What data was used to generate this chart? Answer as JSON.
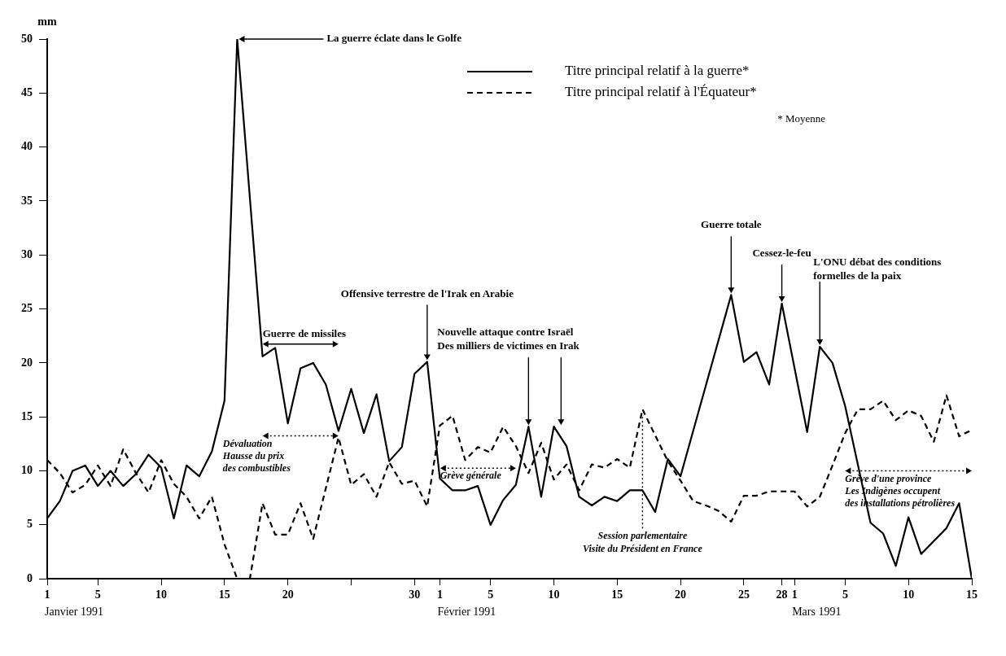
{
  "chart_data": {
    "type": "line",
    "ylabel": "mm",
    "xlim": [
      "1991-01-01",
      "1991-03-15"
    ],
    "ylim": [
      0,
      50
    ],
    "yticks": [
      0,
      5,
      10,
      15,
      20,
      25,
      30,
      35,
      40,
      45,
      50
    ],
    "xticks": [
      {
        "value": "1991-01-01",
        "label": "1"
      },
      {
        "value": "1991-01-05",
        "label": "5"
      },
      {
        "value": "1991-01-10",
        "label": "10"
      },
      {
        "value": "1991-01-15",
        "label": "15"
      },
      {
        "value": "1991-01-20",
        "label": "20"
      },
      {
        "value": "1991-01-25",
        "label": null
      },
      {
        "value": "1991-01-30",
        "label": "30"
      },
      {
        "value": "1991-02-01",
        "label": "1"
      },
      {
        "value": "1991-02-05",
        "label": "5"
      },
      {
        "value": "1991-02-10",
        "label": "10"
      },
      {
        "value": "1991-02-15",
        "label": "15"
      },
      {
        "value": "1991-02-20",
        "label": "20"
      },
      {
        "value": "1991-02-25",
        "label": "25"
      },
      {
        "value": "1991-02-28",
        "label": "28"
      },
      {
        "value": "1991-03-01",
        "label": "1"
      },
      {
        "value": "1991-03-05",
        "label": "5"
      },
      {
        "value": "1991-03-10",
        "label": "10"
      },
      {
        "value": "1991-03-15",
        "label": "15"
      }
    ],
    "grid": false,
    "legend": "top right",
    "marker": "none",
    "series": [
      {
        "name": "Titre principal relatif à la guerre*",
        "color": "#000000",
        "line_style": "solid",
        "x": [
          "1991-01-01",
          "1991-01-02",
          "1991-01-03",
          "1991-01-04",
          "1991-01-05",
          "1991-01-06",
          "1991-01-07",
          "1991-01-08",
          "1991-01-09",
          "1991-01-10",
          "1991-01-11",
          "1991-01-12",
          "1991-01-13",
          "1991-01-14",
          "1991-01-15",
          "1991-01-16",
          "1991-01-18",
          "1991-01-19",
          "1991-01-20",
          "1991-01-21",
          "1991-01-22",
          "1991-01-23",
          "1991-01-24",
          "1991-01-25",
          "1991-01-26",
          "1991-01-27",
          "1991-01-28",
          "1991-01-29",
          "1991-01-30",
          "1991-01-31",
          "1991-02-01",
          "1991-02-02",
          "1991-02-03",
          "1991-02-04",
          "1991-02-05",
          "1991-02-06",
          "1991-02-07",
          "1991-02-08",
          "1991-02-09",
          "1991-02-10",
          "1991-02-11",
          "1991-02-12",
          "1991-02-13",
          "1991-02-14",
          "1991-02-15",
          "1991-02-16",
          "1991-02-17",
          "1991-02-18",
          "1991-02-19",
          "1991-02-20",
          "1991-02-24",
          "1991-02-25",
          "1991-02-26",
          "1991-02-27",
          "1991-02-28",
          "1991-03-02",
          "1991-03-03",
          "1991-03-04",
          "1991-03-05",
          "1991-03-07",
          "1991-03-08",
          "1991-03-09",
          "1991-03-10",
          "1991-03-11",
          "1991-03-13",
          "1991-03-14",
          "1991-03-15"
        ],
        "values": [
          5.6,
          7.2,
          10,
          10.5,
          8.6,
          10,
          8.6,
          9.7,
          11.5,
          10.3,
          5.6,
          10.5,
          9.5,
          11.8,
          16.5,
          50,
          20.6,
          21.4,
          14.4,
          19.5,
          20,
          18,
          13.7,
          17.6,
          13.5,
          17.1,
          10.9,
          12.2,
          19,
          20.1,
          9.3,
          8.2,
          8.2,
          8.6,
          5,
          7.3,
          8.7,
          14.1,
          7.6,
          14.1,
          12.3,
          7.6,
          6.8,
          7.6,
          7.2,
          8.2,
          8.2,
          6.2,
          11.1,
          9.5,
          26.3,
          20.1,
          21,
          18,
          25.5,
          13.6,
          21.5,
          20,
          16,
          5.2,
          4.2,
          1.2,
          5.7,
          2.3,
          4.7,
          7,
          0
        ]
      },
      {
        "name": "Titre principal relatif à l'Équateur*",
        "color": "#000000",
        "line_style": "dashed",
        "x": [
          "1991-01-01",
          "1991-01-02",
          "1991-01-03",
          "1991-01-04",
          "1991-01-05",
          "1991-01-06",
          "1991-01-07",
          "1991-01-08",
          "1991-01-09",
          "1991-01-10",
          "1991-01-11",
          "1991-01-12",
          "1991-01-13",
          "1991-01-14",
          "1991-01-15",
          "1991-01-16",
          "1991-01-17",
          "1991-01-18",
          "1991-01-19",
          "1991-01-20",
          "1991-01-21",
          "1991-01-22",
          "1991-01-24",
          "1991-01-25",
          "1991-01-26",
          "1991-01-27",
          "1991-01-28",
          "1991-01-29",
          "1991-01-30",
          "1991-01-31",
          "1991-02-01",
          "1991-02-02",
          "1991-02-03",
          "1991-02-04",
          "1991-02-05",
          "1991-02-06",
          "1991-02-07",
          "1991-02-08",
          "1991-02-09",
          "1991-02-10",
          "1991-02-11",
          "1991-02-12",
          "1991-02-13",
          "1991-02-14",
          "1991-02-15",
          "1991-02-16",
          "1991-02-17",
          "1991-02-18",
          "1991-02-19",
          "1991-02-20",
          "1991-02-21",
          "1991-02-22",
          "1991-02-23",
          "1991-02-24",
          "1991-02-25",
          "1991-02-26",
          "1991-02-27",
          "1991-02-28",
          "1991-03-01",
          "1991-03-02",
          "1991-03-03",
          "1991-03-04",
          "1991-03-05",
          "1991-03-06",
          "1991-03-07",
          "1991-03-08",
          "1991-03-09",
          "1991-03-10",
          "1991-03-11",
          "1991-03-12",
          "1991-03-13",
          "1991-03-14",
          "1991-03-15"
        ],
        "values": [
          11,
          9.8,
          8,
          8.7,
          10.5,
          8.6,
          12,
          9.8,
          8,
          11,
          8.8,
          7.6,
          5.6,
          7.6,
          3.2,
          0,
          0,
          7,
          4.1,
          4.1,
          7,
          3.7,
          13.1,
          8.7,
          9.7,
          7.6,
          10.8,
          8.8,
          9.1,
          6.7,
          14.2,
          15.1,
          11,
          12.2,
          11.7,
          14.1,
          12.3,
          9.8,
          12.6,
          9.2,
          10.6,
          8.2,
          10.6,
          10.3,
          11.1,
          10.3,
          15.7,
          13.3,
          10.9,
          9.1,
          7.2,
          6.8,
          6.3,
          5.3,
          7.7,
          7.7,
          8.1,
          8.1,
          8.1,
          6.7,
          7.6,
          10.5,
          13.5,
          15.7,
          15.7,
          16.5,
          14.7,
          15.6,
          15.1,
          12.7,
          17,
          13.2,
          13.8
        ]
      }
    ],
    "annotations": [
      {
        "text": "La guerre éclate dans le Golfe",
        "x": "1991-01-16",
        "y": 50
      },
      {
        "text": "Offensive terrestre de l'Irak en Arabie",
        "x": "1991-01-31",
        "y": 20.1
      },
      {
        "text": "Nouvelle attaque contre Israël\nDes milliers de victimes en Irak",
        "x": "1991-02-08",
        "y": 14.1
      },
      {
        "text": "Guerre totale",
        "x": "1991-02-24",
        "y": 26.3
      },
      {
        "text": "Cessez-le-feu",
        "x": "1991-02-28",
        "y": 25.5
      },
      {
        "text": "L'ONU débat des conditions\nformelles de la paix",
        "x": "1991-03-03",
        "y": 21.5
      },
      "* Moyenne",
      "Guerre de missiles",
      "Dévaluation\nHausse du prix\ndes combustibles",
      "Grève générale",
      "Grève d'une province\nLes Indigènes occupent\ndes installations pétrolières",
      "Janvier 1991",
      "Février 1991",
      "Mars 1991"
    ],
    "ref_lines": [
      {
        "axis": "x",
        "value": "1991-02-17",
        "label": "Session parlementaire\nVisite du Président en France",
        "line_style": "dotted"
      }
    ]
  }
}
